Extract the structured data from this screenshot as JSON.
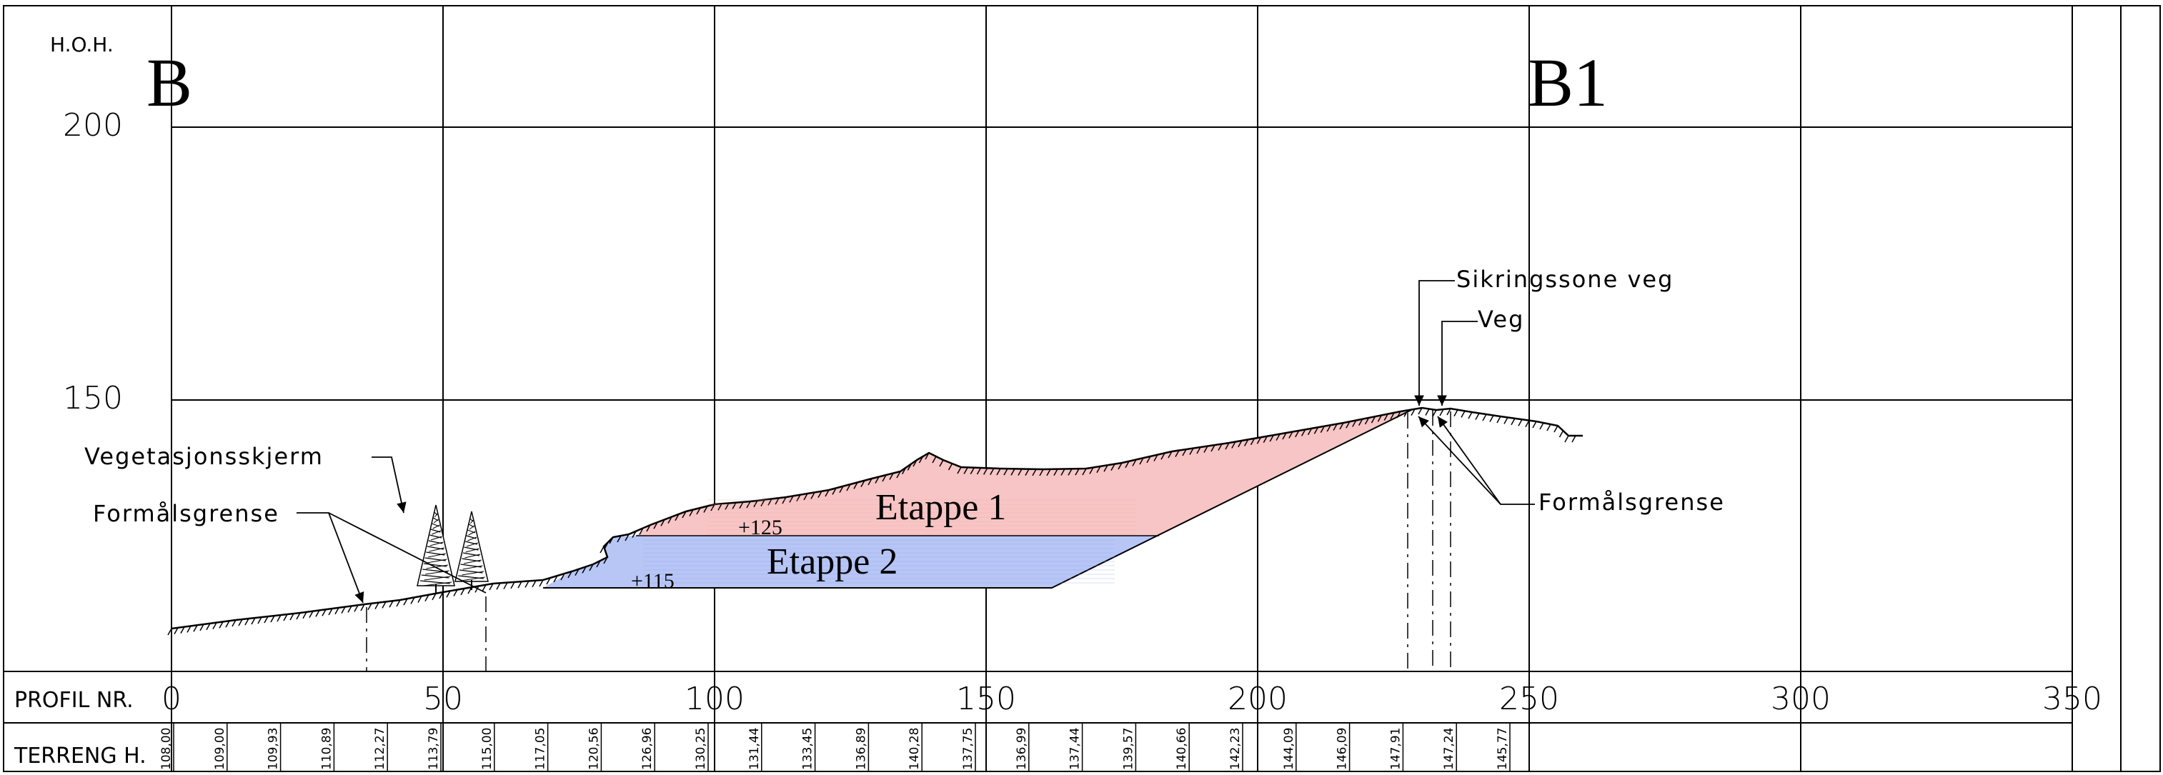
{
  "labels": {
    "hoh": "H.O.H.",
    "section_start": "B",
    "section_end": "B1",
    "profil_nr": "PROFIL NR.",
    "terreng_h": "TERRENG H.",
    "vegetasjonsskjerm": "Vegetasjonsskjerm",
    "formalsgrense_left": "Formålsgrense",
    "formalsgrense_right": "Formålsgrense",
    "sikringssone_veg": "Sikringssone veg",
    "veg": "Veg",
    "etappe1": "Etappe 1",
    "etappe2": "Etappe 2",
    "level_125": "+125",
    "level_115": "+115"
  },
  "elevation_ticks": [
    "200",
    "150"
  ],
  "profile_ticks": [
    "0",
    "50",
    "100",
    "150",
    "200",
    "250",
    "300",
    "350"
  ],
  "terrain_heights": [
    {
      "profil": 0,
      "h": "108,00"
    },
    {
      "profil": 10,
      "h": "109,00"
    },
    {
      "profil": 20,
      "h": "109,93"
    },
    {
      "profil": 30,
      "h": "110,89"
    },
    {
      "profil": 40,
      "h": "112,27"
    },
    {
      "profil": 50,
      "h": "113,79"
    },
    {
      "profil": 60,
      "h": "115,00"
    },
    {
      "profil": 70,
      "h": "117,05"
    },
    {
      "profil": 80,
      "h": "120,56"
    },
    {
      "profil": 90,
      "h": "126,96"
    },
    {
      "profil": 100,
      "h": "130,25"
    },
    {
      "profil": 110,
      "h": "131,44"
    },
    {
      "profil": 120,
      "h": "133,45"
    },
    {
      "profil": 130,
      "h": "136,89"
    },
    {
      "profil": 140,
      "h": "140,28"
    },
    {
      "profil": 150,
      "h": "137,75"
    },
    {
      "profil": 160,
      "h": "136,99"
    },
    {
      "profil": 170,
      "h": "137,44"
    },
    {
      "profil": 180,
      "h": "139,57"
    },
    {
      "profil": 190,
      "h": "140,66"
    },
    {
      "profil": 200,
      "h": "142,23"
    },
    {
      "profil": 210,
      "h": "144,09"
    },
    {
      "profil": 220,
      "h": "146,09"
    },
    {
      "profil": 230,
      "h": "147,91"
    },
    {
      "profil": 240,
      "h": "147,24"
    },
    {
      "profil": 250,
      "h": "145,77"
    }
  ],
  "colors": {
    "etappe1_fill": "#f7c5c5",
    "etappe2_fill": "#b7c6f5",
    "line": "#000000"
  }
}
